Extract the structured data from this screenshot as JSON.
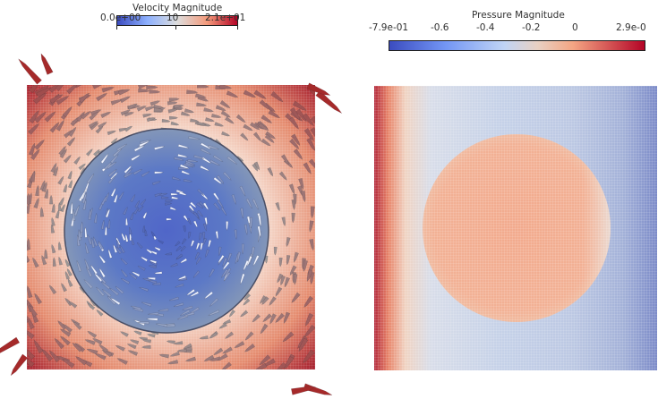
{
  "velocity": {
    "title": "Velocity Magnitude",
    "ticks": [
      "0.0e+00",
      "10",
      "2.1e+01"
    ],
    "colors": [
      "#3b4cc0",
      "#dddddd",
      "#b40426"
    ]
  },
  "pressure": {
    "title": "Pressure Magnitude",
    "ticks": [
      "-7.9e-01",
      "-0.6",
      "-0.4",
      "-0.2",
      "0",
      "2.9e-0"
    ],
    "colors": [
      "#3b4cc0",
      "#dddddd",
      "#b40426"
    ]
  }
}
